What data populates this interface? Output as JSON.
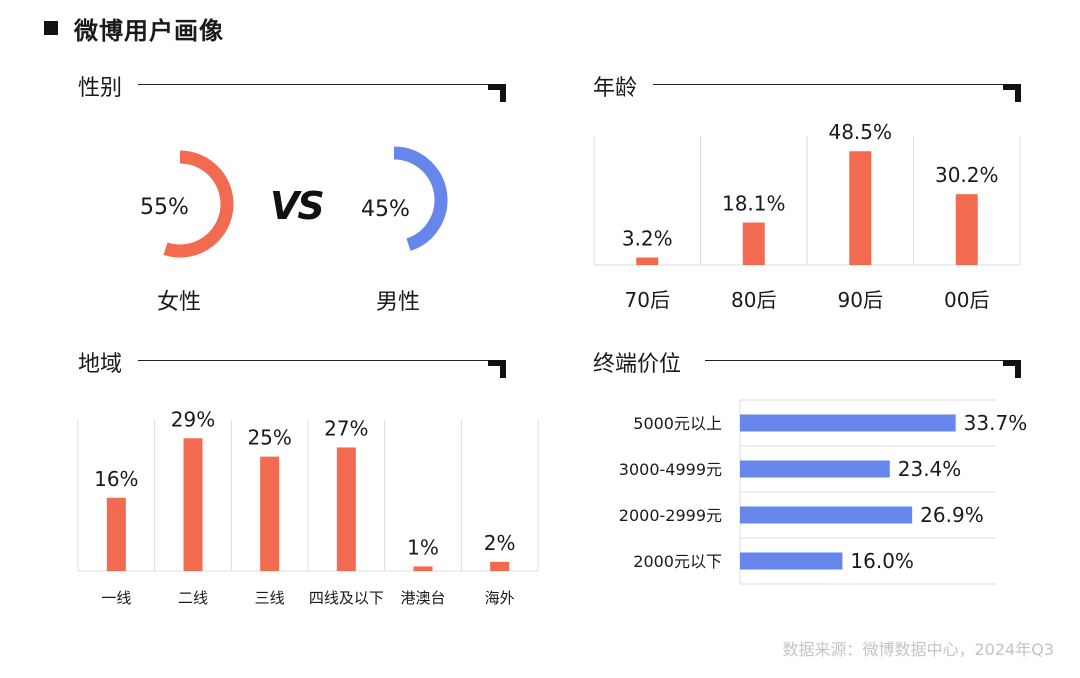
{
  "page_title": "微博用户画像",
  "source": "数据来源：微博数据中心，2024年Q3",
  "colors": {
    "female": "#f26b50",
    "male": "#6686ec",
    "bar_orange": "#f26b50",
    "bar_blue": "#6686ec",
    "grid": "#dcdcdc"
  },
  "chart_data": [
    {
      "type": "pie",
      "title": "性别",
      "vs_label": "VS",
      "series": [
        {
          "name": "女性",
          "value": 55,
          "label": "55%"
        },
        {
          "name": "男性",
          "value": 45,
          "label": "45%"
        }
      ]
    },
    {
      "type": "bar",
      "title": "年龄",
      "categories": [
        "70后",
        "80后",
        "90后",
        "00后"
      ],
      "values": [
        3.2,
        18.1,
        48.5,
        30.2
      ],
      "value_labels": [
        "3.2%",
        "18.1%",
        "48.5%",
        "30.2%"
      ],
      "ylim": [
        0,
        55
      ]
    },
    {
      "type": "bar",
      "title": "地域",
      "categories": [
        "一线",
        "二线",
        "三线",
        "四线及以下",
        "港澳台",
        "海外"
      ],
      "values": [
        16,
        29,
        25,
        27,
        1,
        2
      ],
      "value_labels": [
        "16%",
        "29%",
        "25%",
        "27%",
        "1%",
        "2%"
      ],
      "ylim": [
        0,
        33
      ]
    },
    {
      "type": "bar",
      "orientation": "horizontal",
      "title": "终端价位",
      "categories": [
        "5000元以上",
        "3000-4999元",
        "2000-2999元",
        "2000元以下"
      ],
      "values": [
        33.7,
        23.4,
        26.9,
        16.0
      ],
      "value_labels": [
        "33.7%",
        "23.4%",
        "26.9%",
        "16.0%"
      ],
      "xlim": [
        0,
        40
      ]
    }
  ]
}
